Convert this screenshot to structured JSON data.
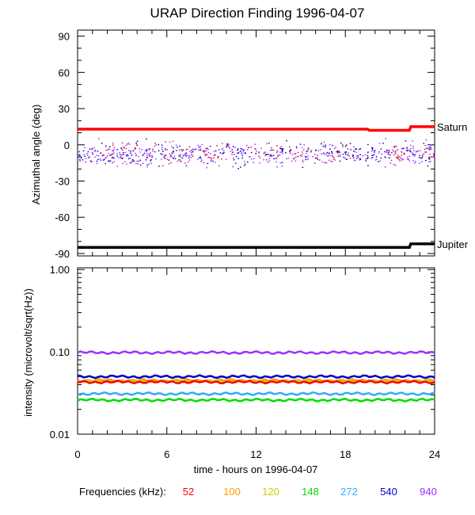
{
  "chart_data": [
    {
      "type": "line",
      "panel": "azimuth",
      "title": "URAP Direction Finding  1996-04-07",
      "ylabel": "Azimuthal angle (deg)",
      "xlim": [
        0,
        24
      ],
      "ylim": [
        -92,
        95
      ],
      "y_ticks": [
        90,
        60,
        30,
        0,
        -30,
        -60,
        -90
      ],
      "y_tick_labels": [
        "90",
        "60",
        "30",
        "0",
        "-30",
        "-60",
        "-90"
      ],
      "series": [
        {
          "name": "Saturn",
          "color": "#ff0000",
          "x": [
            0,
            19.5,
            19.6,
            22.3,
            22.4,
            24
          ],
          "y": [
            13,
            13,
            12,
            12,
            15,
            15
          ]
        },
        {
          "name": "Jupiter",
          "color": "#000000",
          "x": [
            0,
            22.3,
            22.4,
            24
          ],
          "y": [
            -85,
            -85,
            -82,
            -82
          ]
        }
      ],
      "scatter": {
        "colors": [
          "#0000cc",
          "#9933ff",
          "#ff0000"
        ],
        "y_center": -7,
        "y_spread": 14,
        "x_range": [
          0,
          24
        ]
      }
    },
    {
      "type": "line",
      "panel": "intensity",
      "ylabel": "intensity (microvolt/sqrt(Hz))",
      "xlabel": "time - hours on 1996-04-07",
      "yscale": "log",
      "xlim": [
        0,
        24
      ],
      "ylim": [
        0.01,
        1.05
      ],
      "x_ticks": [
        0,
        6,
        12,
        18,
        24
      ],
      "x_tick_labels": [
        "0",
        "6",
        "12",
        "18",
        "24"
      ],
      "y_ticks": [
        1.0,
        0.1,
        0.01
      ],
      "y_tick_labels": [
        "1.00",
        "0.10",
        "0.01"
      ],
      "series": [
        {
          "freq": "940",
          "color": "#9933ff",
          "value": 0.098
        },
        {
          "freq": "540",
          "color": "#0000cc",
          "value": 0.05
        },
        {
          "freq": "100",
          "color": "#ff9900",
          "value": 0.045
        },
        {
          "freq": "120",
          "color": "#cccc00",
          "value": 0.044
        },
        {
          "freq": "52",
          "color": "#ff0000",
          "value": 0.043
        },
        {
          "freq": "272",
          "color": "#33aaff",
          "value": 0.031
        },
        {
          "freq": "148",
          "color": "#00dd00",
          "value": 0.026
        }
      ]
    }
  ],
  "legend": {
    "label": "Frequencies (kHz):",
    "items": [
      {
        "text": "52",
        "color": "#ff0000"
      },
      {
        "text": "100",
        "color": "#ff9900"
      },
      {
        "text": "120",
        "color": "#cccc00"
      },
      {
        "text": "148",
        "color": "#00dd00"
      },
      {
        "text": "272",
        "color": "#33aaff"
      },
      {
        "text": "540",
        "color": "#0000cc"
      },
      {
        "text": "940",
        "color": "#9933ff"
      }
    ]
  }
}
